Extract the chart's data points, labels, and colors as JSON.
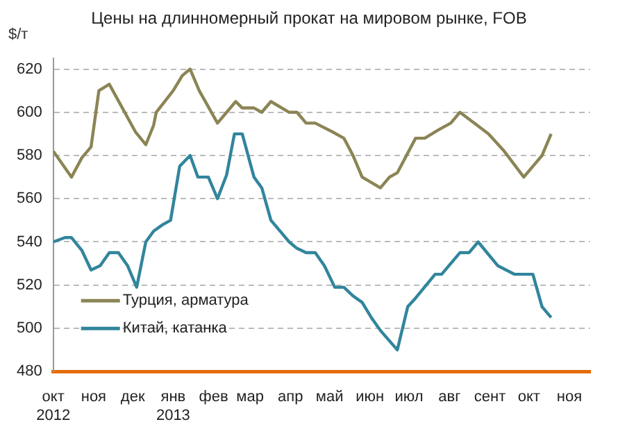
{
  "chart_data": {
    "type": "line",
    "title": "Цены на длинномерный прокат на мировом рынке, FOB",
    "ylabel": "$/т",
    "xlim": [
      "2012-10-01",
      "2013-11-17"
    ],
    "xticks": [
      {
        "value": "2012-10-01",
        "label": "окт 2012"
      },
      {
        "value": "2012-11-01",
        "label": "ноя"
      },
      {
        "value": "2012-12-01",
        "label": "дек"
      },
      {
        "value": "2013-01-01",
        "label": "янв 2013"
      },
      {
        "value": "2013-02-01",
        "label": "фев"
      },
      {
        "value": "2013-03-01",
        "label": "мар"
      },
      {
        "value": "2013-04-01",
        "label": "апр"
      },
      {
        "value": "2013-05-01",
        "label": "май"
      },
      {
        "value": "2013-06-01",
        "label": "июн"
      },
      {
        "value": "2013-07-01",
        "label": "июл"
      },
      {
        "value": "2013-08-01",
        "label": "авг"
      },
      {
        "value": "2013-09-01",
        "label": "сент"
      },
      {
        "value": "2013-10-01",
        "label": "окт"
      },
      {
        "value": "2013-11-01",
        "label": "ноя"
      }
    ],
    "ylim": [
      480,
      625
    ],
    "yticks": [
      480,
      500,
      520,
      540,
      560,
      580,
      600,
      620
    ],
    "grid": "y",
    "legend": "bottom left",
    "marker": "none",
    "line_style": "solid",
    "series": [
      {
        "name": "Турция, арматура",
        "color": "#8b8455",
        "x": [
          "2012-10-01",
          "2012-10-15",
          "2012-10-23",
          "2012-10-30",
          "2012-11-05",
          "2012-11-13",
          "2012-12-03",
          "2012-12-11",
          "2012-12-17",
          "2012-12-19",
          "2013-01-01",
          "2013-01-08",
          "2013-01-14",
          "2013-01-21",
          "2013-02-04",
          "2013-02-18",
          "2013-02-23",
          "2013-03-04",
          "2013-03-10",
          "2013-03-17",
          "2013-03-31",
          "2013-04-06",
          "2013-04-13",
          "2013-04-20",
          "2013-05-03",
          "2013-05-12",
          "2013-05-19",
          "2013-05-26",
          "2013-06-09",
          "2013-06-16",
          "2013-06-22",
          "2013-07-06",
          "2013-07-13",
          "2013-07-24",
          "2013-08-02",
          "2013-08-09",
          "2013-08-20",
          "2013-08-31",
          "2013-09-12",
          "2013-09-27",
          "2013-10-04",
          "2013-10-11",
          "2013-10-18"
        ],
        "values": [
          582,
          570,
          579,
          584,
          610,
          613,
          591,
          585,
          594,
          600,
          610,
          617,
          620,
          610,
          595,
          605,
          602,
          602,
          600,
          605,
          600,
          600,
          595,
          595,
          591,
          588,
          580,
          570,
          565,
          570,
          572,
          588,
          588,
          592,
          595,
          600,
          595,
          590,
          582,
          570,
          575,
          580,
          590
        ]
      },
      {
        "name": "Китай, катанка",
        "color": "#31859c",
        "x": [
          "2012-10-01",
          "2012-10-10",
          "2012-10-15",
          "2012-10-23",
          "2012-10-30",
          "2012-11-06",
          "2012-11-13",
          "2012-11-20",
          "2012-11-27",
          "2012-12-04",
          "2012-12-11",
          "2012-12-17",
          "2012-12-24",
          "2012-12-30",
          "2013-01-06",
          "2013-01-14",
          "2013-01-20",
          "2013-01-28",
          "2013-02-04",
          "2013-02-11",
          "2013-02-17",
          "2013-02-23",
          "2013-03-04",
          "2013-03-10",
          "2013-03-17",
          "2013-03-24",
          "2013-03-31",
          "2013-04-06",
          "2013-04-13",
          "2013-04-20",
          "2013-04-27",
          "2013-05-05",
          "2013-05-12",
          "2013-05-19",
          "2013-05-26",
          "2013-06-02",
          "2013-06-09",
          "2013-06-22",
          "2013-06-30",
          "2013-07-06",
          "2013-07-21",
          "2013-07-26",
          "2013-08-09",
          "2013-08-16",
          "2013-08-23",
          "2013-09-07",
          "2013-09-20",
          "2013-10-04",
          "2013-10-11",
          "2013-10-18"
        ],
        "values": [
          540,
          542,
          542,
          536,
          527,
          529,
          535,
          535,
          529,
          519,
          540,
          545,
          548,
          550,
          575,
          580,
          570,
          570,
          560,
          571,
          590,
          590,
          570,
          565,
          550,
          545,
          540,
          537,
          535,
          535,
          529,
          519,
          519,
          515,
          512,
          505,
          499,
          490,
          510,
          514,
          525,
          525,
          535,
          535,
          540,
          529,
          525,
          525,
          510,
          505
        ]
      }
    ]
  }
}
